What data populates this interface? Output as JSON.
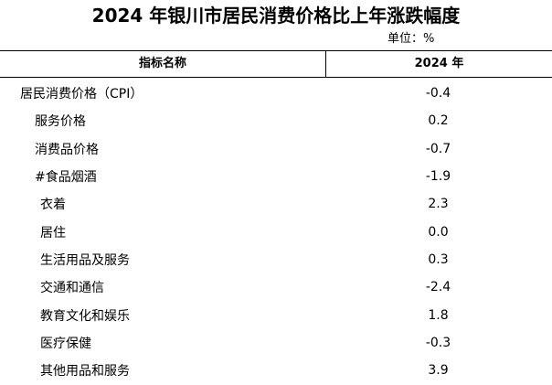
{
  "title": "2024 年银川市居民消费价格比上年涨跌幅度",
  "unit": "单位：%",
  "header": {
    "name": "指标名称",
    "year": "2024 年"
  },
  "rows": [
    {
      "name": "居民消费价格（CPI）",
      "value": "-0.4"
    },
    {
      "name": "服务价格",
      "value": "0.2"
    },
    {
      "name": "消费品价格",
      "value": "-0.7"
    },
    {
      "name": "#食品烟酒",
      "value": "-1.9"
    },
    {
      "name": "衣着",
      "value": "2.3"
    },
    {
      "name": "居住",
      "value": "0.0"
    },
    {
      "name": "生活用品及服务",
      "value": "0.3"
    },
    {
      "name": "交通和通信",
      "value": "-2.4"
    },
    {
      "name": "教育文化和娱乐",
      "value": "1.8"
    },
    {
      "name": "医疗保健",
      "value": "-0.3"
    },
    {
      "name": "其他用品和服务",
      "value": "3.9"
    }
  ]
}
